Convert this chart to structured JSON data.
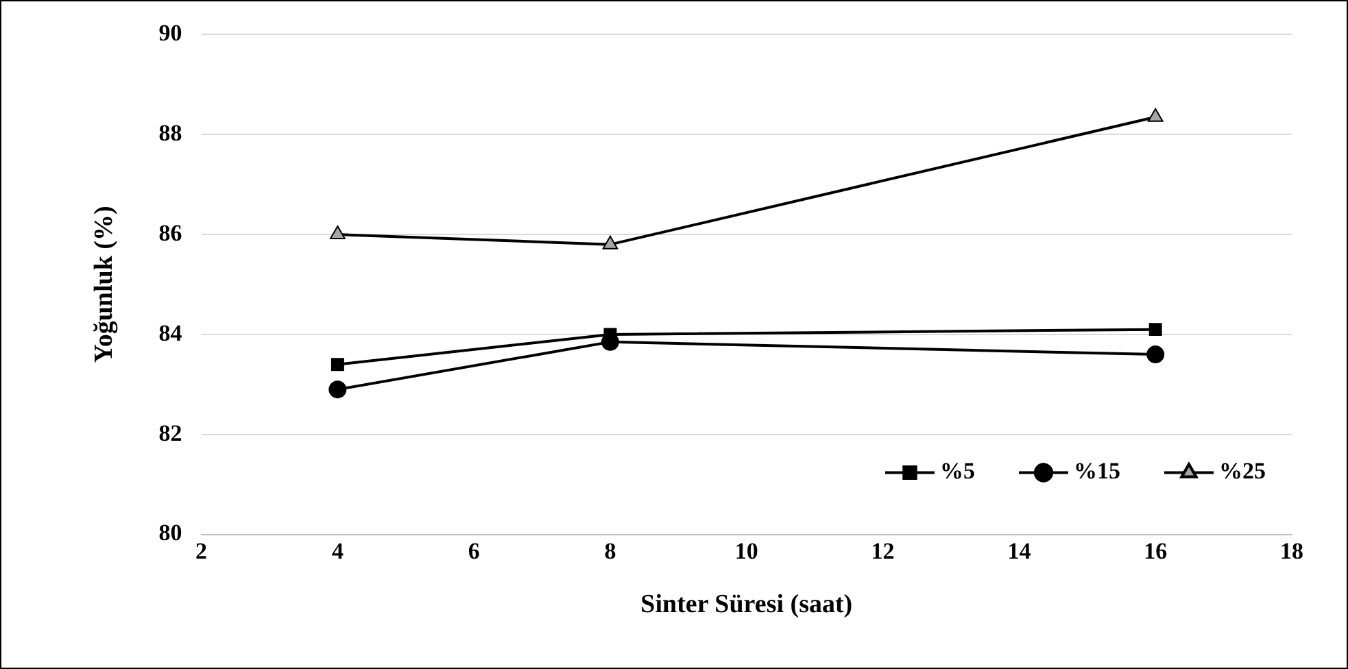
{
  "chart_data": {
    "type": "line",
    "xlabel": "Sinter Süresi (saat)",
    "ylabel": "Yoğunluk (%)",
    "x": [
      4,
      8,
      16
    ],
    "series": [
      {
        "name": "%5",
        "color": "#000000",
        "marker": "square",
        "values": [
          83.4,
          84.0,
          84.1
        ]
      },
      {
        "name": "%15",
        "color": "#000000",
        "marker": "circle",
        "values": [
          82.9,
          83.85,
          83.6
        ]
      },
      {
        "name": "%25",
        "color": "#000000",
        "marker": "triangle",
        "values": [
          86.0,
          85.8,
          88.35
        ]
      }
    ],
    "xlim": [
      2,
      18
    ],
    "xticks": [
      2,
      4,
      6,
      8,
      10,
      12,
      14,
      16,
      18
    ],
    "ylim": [
      80,
      90
    ],
    "yticks": [
      80,
      82,
      84,
      86,
      88,
      90
    ],
    "grid": "y",
    "legend": "bottom right",
    "line_style": "solid"
  }
}
